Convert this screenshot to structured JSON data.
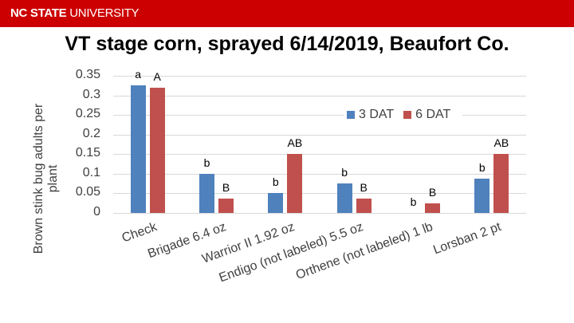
{
  "banner": {
    "bold": "NC STATE",
    "light": "UNIVERSITY",
    "color": "#cc0000"
  },
  "title": "VT stage corn, sprayed 6/14/2019, Beaufort Co.",
  "legend": [
    {
      "label": "3 DAT",
      "color": "#4f81bd"
    },
    {
      "label": "6 DAT",
      "color": "#c0504d"
    }
  ],
  "chart_data": {
    "type": "bar",
    "title": "VT stage corn, sprayed 6/14/2019, Beaufort Co.",
    "xlabel": "",
    "ylabel": "Brown stink bug adults per plant",
    "ylim": [
      0,
      0.35
    ],
    "yticks": [
      "0",
      "0.05",
      "0.1",
      "0.15",
      "0.2",
      "0.25",
      "0.3",
      "0.35"
    ],
    "grid": true,
    "legend_position": "upper right inside",
    "categories": [
      "Check",
      "Brigade 6.4 oz",
      "Warrior II 1.92 oz",
      "Endigo (not labeled) 5.5 oz",
      "Orthene (not labeled) 1 lb",
      "Lorsban 2 pt"
    ],
    "series": [
      {
        "name": "3 DAT",
        "color": "#4f81bd",
        "values": [
          0.325,
          0.1,
          0.05,
          0.075,
          0.0,
          0.0875
        ],
        "annotations": [
          "a",
          "b",
          "b",
          "b",
          "b",
          "b"
        ]
      },
      {
        "name": "6 DAT",
        "color": "#c0504d",
        "values": [
          0.32,
          0.0375,
          0.15,
          0.0375,
          0.025,
          0.15
        ],
        "annotations": [
          "A",
          "B",
          "AB",
          "B",
          "B",
          "AB"
        ]
      }
    ]
  }
}
